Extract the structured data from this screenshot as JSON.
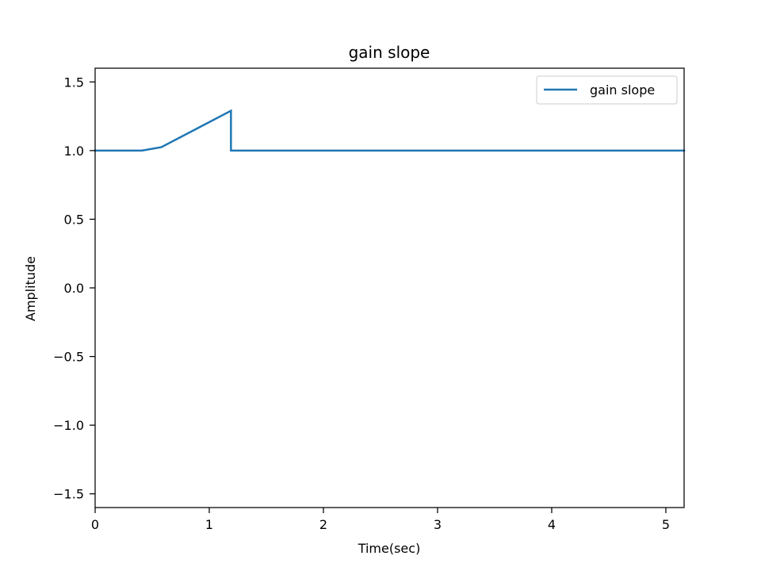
{
  "chart_data": {
    "type": "line",
    "title": "gain slope",
    "xlabel": "Time(sec)",
    "ylabel": "Amplitude",
    "xlim": [
      0,
      5.16
    ],
    "ylim": [
      -1.6,
      1.6
    ],
    "xticks": [
      0,
      1,
      2,
      3,
      4,
      5
    ],
    "xtick_labels": [
      "0",
      "1",
      "2",
      "3",
      "4",
      "5"
    ],
    "yticks": [
      -1.5,
      -1.0,
      -0.5,
      0.0,
      0.5,
      1.0,
      1.5
    ],
    "ytick_labels": [
      "−1.5",
      "−1.0",
      "−0.5",
      "0.0",
      "0.5",
      "1.0",
      "1.5"
    ],
    "grid": false,
    "legend_position": "top-right",
    "series": [
      {
        "name": "gain slope",
        "color": "#1f77b4",
        "x": [
          0,
          0.41,
          0.58,
          1.19,
          1.19,
          5.16
        ],
        "y": [
          1.0,
          1.0,
          1.025,
          1.29,
          1.0,
          1.0
        ]
      }
    ]
  }
}
